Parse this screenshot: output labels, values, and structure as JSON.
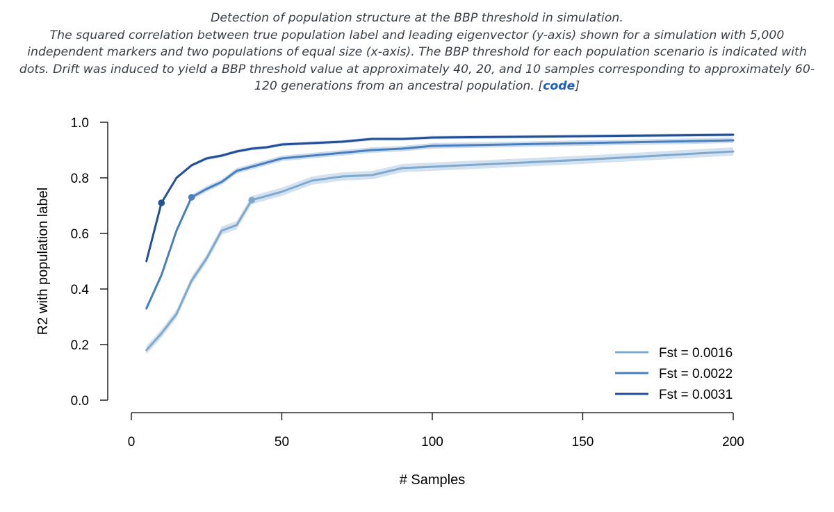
{
  "caption": {
    "title": "Detection of population structure at the BBP threshold in simulation.",
    "body": "The squared correlation between true population label and leading eigenvector (y-axis) shown for a simulation with 5,000 independent markers and two populations of equal size (x-axis). The BBP threshold for each population scenario is indicated with dots. Drift was induced to yield a BBP threshold value at approximately 40, 20, and 10 samples corresponding to approximately 60-120 generations from an ancestral population.",
    "link_open": "[",
    "link_text": "code",
    "link_close": "]"
  },
  "colors": {
    "fst_0016": "#7fa8cf",
    "fst_0022": "#4a7fbd",
    "fst_0031": "#224f96",
    "band_0016": "#c5d8ea",
    "band_0022": "#bcd1e8",
    "band_0031": "#b5cbe4"
  },
  "chart_data": {
    "type": "line",
    "title": "",
    "xlabel": "# Samples",
    "ylabel": "R2 with population label",
    "xlim": [
      0,
      200
    ],
    "ylim": [
      0,
      1
    ],
    "xticks": [
      "0",
      "50",
      "100",
      "150",
      "200"
    ],
    "yticks": [
      "0.0",
      "0.2",
      "0.4",
      "0.6",
      "0.8",
      "1.0"
    ],
    "legend_position": "bottom-right",
    "series": [
      {
        "name": "Fst = 0.0016",
        "color_key": "fst_0016",
        "band_key": "band_0016",
        "band_halfwidth": 0.015,
        "x": [
          5,
          10,
          15,
          20,
          25,
          30,
          35,
          40,
          50,
          60,
          70,
          80,
          90,
          100,
          150,
          200
        ],
        "y": [
          0.18,
          0.24,
          0.31,
          0.43,
          0.51,
          0.61,
          0.63,
          0.72,
          0.75,
          0.79,
          0.805,
          0.81,
          0.835,
          0.84,
          0.865,
          0.895
        ],
        "threshold": {
          "x": 40,
          "y": 0.72
        }
      },
      {
        "name": "Fst = 0.0022",
        "color_key": "fst_0022",
        "band_key": "band_0022",
        "band_halfwidth": 0.01,
        "x": [
          5,
          10,
          15,
          20,
          25,
          30,
          35,
          40,
          50,
          60,
          70,
          80,
          90,
          100,
          150,
          200
        ],
        "y": [
          0.33,
          0.45,
          0.61,
          0.73,
          0.76,
          0.785,
          0.825,
          0.84,
          0.87,
          0.88,
          0.89,
          0.9,
          0.905,
          0.915,
          0.925,
          0.935
        ],
        "threshold": {
          "x": 20,
          "y": 0.73
        }
      },
      {
        "name": "Fst = 0.0031",
        "color_key": "fst_0031",
        "band_key": "band_0031",
        "band_halfwidth": 0.006,
        "x": [
          5,
          10,
          15,
          20,
          25,
          30,
          35,
          40,
          45,
          50,
          60,
          70,
          80,
          90,
          100,
          150,
          200
        ],
        "y": [
          0.5,
          0.71,
          0.8,
          0.845,
          0.87,
          0.88,
          0.895,
          0.905,
          0.91,
          0.92,
          0.925,
          0.93,
          0.94,
          0.94,
          0.945,
          0.95,
          0.955
        ],
        "threshold": {
          "x": 10,
          "y": 0.71
        }
      }
    ]
  }
}
